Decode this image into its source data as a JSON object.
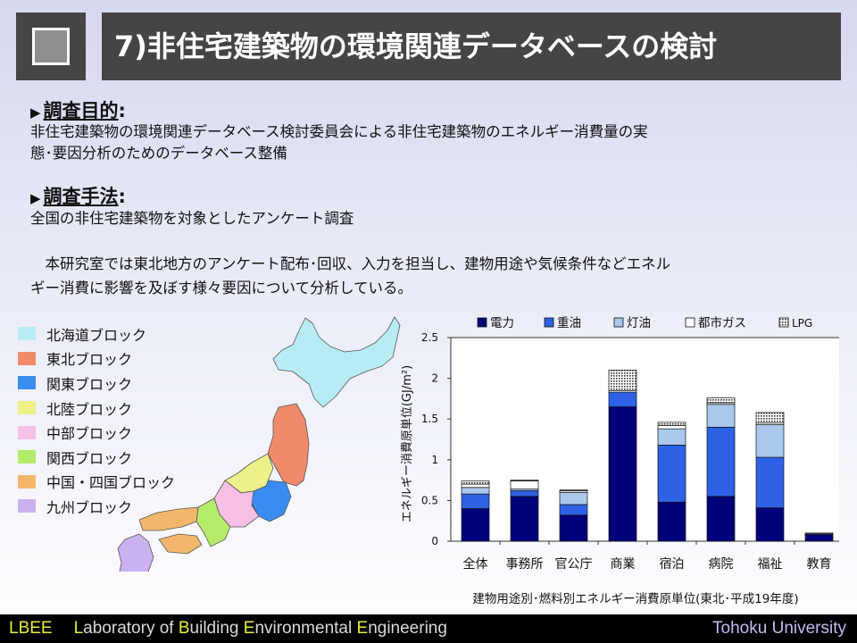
{
  "slide": {
    "title": "7)非住宅建築物の環境関連データベースの検討",
    "purpose_heading": "調査目的",
    "purpose_colon": ":",
    "purpose_line1": "非住宅建築物の環境関連データベース検討委員会による非住宅建築物のエネルギー消費量の実",
    "purpose_line2": "態･要因分析のためのデータベース整備",
    "method_heading": "調査手法",
    "method_colon": ":",
    "method_line1": "全国の非住宅建築物を対象としたアンケート調査",
    "desc_line1": "　本研究室では東北地方のアンケート配布･回収、入力を担当し、建物用途や気候条件などエネル",
    "desc_line2": "ギー消費に影響を及ぼす様々要因について分析している。"
  },
  "legend": {
    "items": [
      {
        "label": "北海道ブロック",
        "color": "#b8ecf4"
      },
      {
        "label": "東北ブロック",
        "color": "#f08a6a"
      },
      {
        "label": "関東ブロック",
        "color": "#3a8cf0"
      },
      {
        "label": "北陸ブロック",
        "color": "#eef08a"
      },
      {
        "label": "中部ブロック",
        "color": "#f6bfe6"
      },
      {
        "label": "関西ブロック",
        "color": "#b4ec6a"
      },
      {
        "label": "中国・四国ブロック",
        "color": "#f4b66a"
      },
      {
        "label": "九州ブロック",
        "color": "#c9b2ef"
      }
    ]
  },
  "chart_data": {
    "type": "bar",
    "stacked": true,
    "title": "建物用途別･燃料別エネルギー消費原単位(東北･平成19年度)",
    "ylabel": "エネルギー消費原単位(GJ/m²)",
    "xlabel": "",
    "ylim": [
      0,
      2.5
    ],
    "yticks": [
      "0",
      "0.5",
      "1",
      "1.5",
      "2",
      "2.5"
    ],
    "legend_position": "top",
    "categories": [
      "全体",
      "事務所",
      "官公庁",
      "商業",
      "宿泊",
      "病院",
      "福祉",
      "教育"
    ],
    "series": [
      {
        "name": "電力",
        "color": "#00007a",
        "values": [
          0.4,
          0.55,
          0.32,
          1.65,
          0.48,
          0.55,
          0.41,
          0.08
        ]
      },
      {
        "name": "重油",
        "color": "#2e62e6",
        "values": [
          0.18,
          0.07,
          0.13,
          0.18,
          0.7,
          0.85,
          0.62,
          0.01
        ]
      },
      {
        "name": "灯油",
        "color": "#a9c8ec",
        "values": [
          0.08,
          0.02,
          0.15,
          0.0,
          0.2,
          0.28,
          0.4,
          0.01
        ]
      },
      {
        "name": "都市ガス",
        "color": "#ffffff",
        "values": [
          0.04,
          0.1,
          0.02,
          0.02,
          0.04,
          0.02,
          0.02,
          0.0
        ]
      },
      {
        "name": "LPG",
        "color": "#999999",
        "pattern": "dots",
        "values": [
          0.04,
          0.01,
          0.01,
          0.25,
          0.04,
          0.06,
          0.13,
          0.0
        ]
      }
    ]
  },
  "footer": {
    "lbee": "LBEE",
    "lab_name": [
      {
        "t": "L",
        "hl": true
      },
      {
        "t": "aboratory of ",
        "hl": false
      },
      {
        "t": "B",
        "hl": true
      },
      {
        "t": "uilding ",
        "hl": false
      },
      {
        "t": "E",
        "hl": true
      },
      {
        "t": "nvironmental ",
        "hl": false
      },
      {
        "t": "E",
        "hl": true
      },
      {
        "t": "ngineering",
        "hl": false
      }
    ],
    "university": "Tohoku University"
  }
}
